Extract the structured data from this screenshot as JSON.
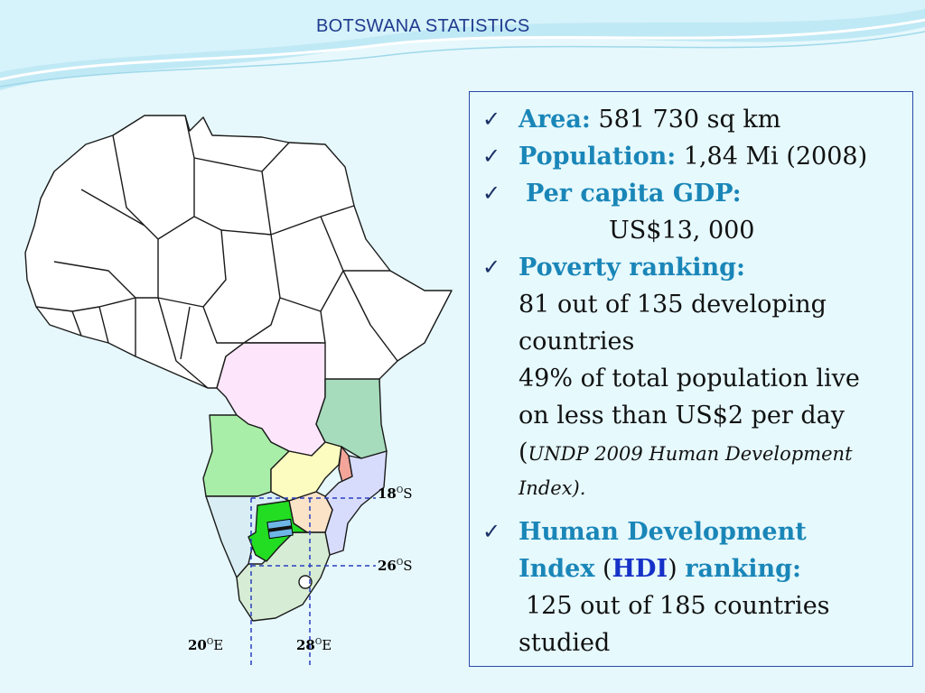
{
  "slide": {
    "title": "BOTSWANA  STATISTICS"
  },
  "stats": {
    "area": {
      "label": "Area:",
      "value": "581 730 sq km"
    },
    "population": {
      "label": "Population:",
      "value": "1,84  Mi (2008)"
    },
    "gdp": {
      "label": "Per capita GDP:",
      "value": "US$13,  000"
    },
    "poverty": {
      "label": "Poverty ranking:",
      "line1": "81 out of 135 developing",
      "line2": "countries",
      "line3": "49% of total population live",
      "line4": "on less than US$2 per day",
      "paren_open": "(",
      "source": "UNDP 2009 Human Development",
      "source2": "Index",
      "paren_close": ")."
    },
    "hdi": {
      "label1": "Human Development",
      "label2": "Index",
      "paren_open": " (",
      "abbr": "HDI",
      "paren_close": ") ",
      "label3": "ranking:",
      "line1": "125 out of 185 countries",
      "line2": "studied"
    }
  },
  "map": {
    "lat_18": {
      "deg": "18",
      "unit": "S"
    },
    "lat_26": {
      "deg": "26",
      "unit": "S"
    },
    "lon_20": {
      "deg": "20",
      "unit": "E"
    },
    "lon_28": {
      "deg": "28",
      "unit": "E"
    },
    "degree_mark": "O",
    "colors": {
      "botswana": "#22dd22",
      "angola": "#a8eea8",
      "drc": "#fde6fb",
      "tanzania": "#a6dcbc",
      "zambia": "#fcfcc0",
      "malawi": "#f3a59a",
      "mozambique": "#d8dcfc",
      "zimbabwe": "#fbe3c8",
      "namibia": "#d8eef4",
      "south_africa": "#d6ecd4",
      "other": "#ffffff",
      "gridline": "#2a3fc0"
    }
  }
}
